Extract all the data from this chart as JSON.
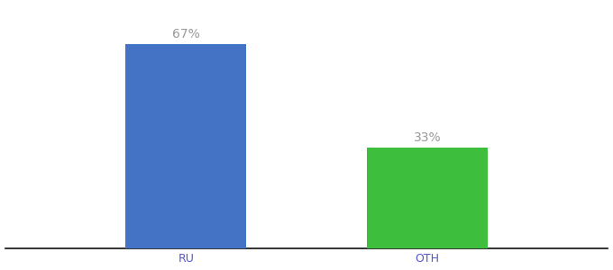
{
  "categories": [
    "RU",
    "OTH"
  ],
  "values": [
    67,
    33
  ],
  "bar_colors": [
    "#4472c4",
    "#3dbf3d"
  ],
  "label_texts": [
    "67%",
    "33%"
  ],
  "label_color": "#999999",
  "ylim": [
    0,
    80
  ],
  "background_color": "#ffffff",
  "bar_width": 0.18,
  "label_fontsize": 10,
  "tick_fontsize": 9,
  "tick_color": "#5555cc",
  "spine_color": "#111111",
  "x_positions": [
    0.32,
    0.68
  ]
}
